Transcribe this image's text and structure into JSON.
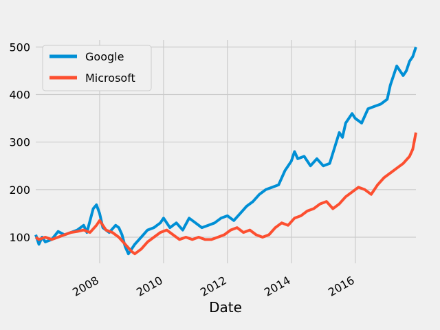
{
  "chart_data": {
    "type": "line",
    "title": "",
    "xlabel": "Date",
    "ylabel": "",
    "xlim": [
      2006.0,
      2017.9
    ],
    "ylim": [
      45,
      515
    ],
    "grid": true,
    "legend_position": "top-left",
    "x_ticks": [
      2008,
      2010,
      2012,
      2014,
      2016
    ],
    "x_tick_labels": [
      "2008",
      "2010",
      "2012",
      "2014",
      "2016"
    ],
    "y_ticks": [
      100,
      200,
      300,
      400,
      500
    ],
    "y_tick_labels": [
      "100",
      "200",
      "300",
      "400",
      "500"
    ],
    "series": [
      {
        "name": "Google",
        "color": "#008fd5",
        "x": [
          2006.0,
          2006.1,
          2006.2,
          2006.3,
          2006.5,
          2006.7,
          2006.9,
          2007.1,
          2007.3,
          2007.5,
          2007.6,
          2007.8,
          2007.9,
          2008.0,
          2008.1,
          2008.2,
          2008.3,
          2008.5,
          2008.6,
          2008.7,
          2008.8,
          2008.9,
          2009.0,
          2009.1,
          2009.3,
          2009.5,
          2009.7,
          2009.9,
          2010.0,
          2010.2,
          2010.4,
          2010.6,
          2010.8,
          2011.0,
          2011.2,
          2011.4,
          2011.6,
          2011.8,
          2012.0,
          2012.2,
          2012.4,
          2012.6,
          2012.8,
          2013.0,
          2013.2,
          2013.4,
          2013.6,
          2013.8,
          2014.0,
          2014.1,
          2014.2,
          2014.4,
          2014.6,
          2014.8,
          2015.0,
          2015.2,
          2015.5,
          2015.6,
          2015.7,
          2015.9,
          2016.0,
          2016.2,
          2016.4,
          2016.6,
          2016.8,
          2017.0,
          2017.1,
          2017.3,
          2017.5,
          2017.6,
          2017.7,
          2017.8,
          2017.9
        ],
        "values": [
          105,
          85,
          100,
          90,
          95,
          112,
          105,
          110,
          115,
          125,
          110,
          160,
          168,
          150,
          120,
          115,
          110,
          125,
          120,
          105,
          80,
          65,
          75,
          85,
          100,
          115,
          120,
          130,
          140,
          120,
          130,
          115,
          140,
          130,
          120,
          125,
          130,
          140,
          145,
          135,
          150,
          165,
          175,
          190,
          200,
          205,
          210,
          240,
          260,
          280,
          265,
          270,
          250,
          265,
          250,
          255,
          320,
          310,
          340,
          360,
          350,
          340,
          370,
          375,
          380,
          390,
          420,
          460,
          440,
          450,
          470,
          480,
          500
        ]
      },
      {
        "name": "Microsoft",
        "color": "#fc4f30",
        "x": [
          2006.0,
          2006.1,
          2006.3,
          2006.5,
          2006.7,
          2006.9,
          2007.1,
          2007.3,
          2007.5,
          2007.7,
          2007.9,
          2008.0,
          2008.2,
          2008.4,
          2008.6,
          2008.8,
          2009.0,
          2009.1,
          2009.3,
          2009.5,
          2009.7,
          2009.9,
          2010.1,
          2010.3,
          2010.5,
          2010.7,
          2010.9,
          2011.1,
          2011.3,
          2011.5,
          2011.7,
          2011.9,
          2012.1,
          2012.3,
          2012.5,
          2012.7,
          2012.9,
          2013.1,
          2013.3,
          2013.5,
          2013.7,
          2013.9,
          2014.1,
          2014.3,
          2014.5,
          2014.7,
          2014.9,
          2015.1,
          2015.3,
          2015.5,
          2015.7,
          2015.9,
          2016.1,
          2016.3,
          2016.5,
          2016.7,
          2016.9,
          2017.1,
          2017.3,
          2017.5,
          2017.7,
          2017.8,
          2017.9
        ],
        "values": [
          100,
          95,
          100,
          95,
          100,
          105,
          110,
          112,
          115,
          110,
          125,
          135,
          115,
          110,
          100,
          85,
          70,
          65,
          75,
          90,
          100,
          110,
          115,
          105,
          95,
          100,
          95,
          100,
          95,
          95,
          100,
          105,
          115,
          120,
          110,
          115,
          105,
          100,
          105,
          120,
          130,
          125,
          140,
          145,
          155,
          160,
          170,
          175,
          160,
          170,
          185,
          195,
          205,
          200,
          190,
          210,
          225,
          235,
          245,
          255,
          270,
          285,
          320
        ]
      }
    ]
  }
}
